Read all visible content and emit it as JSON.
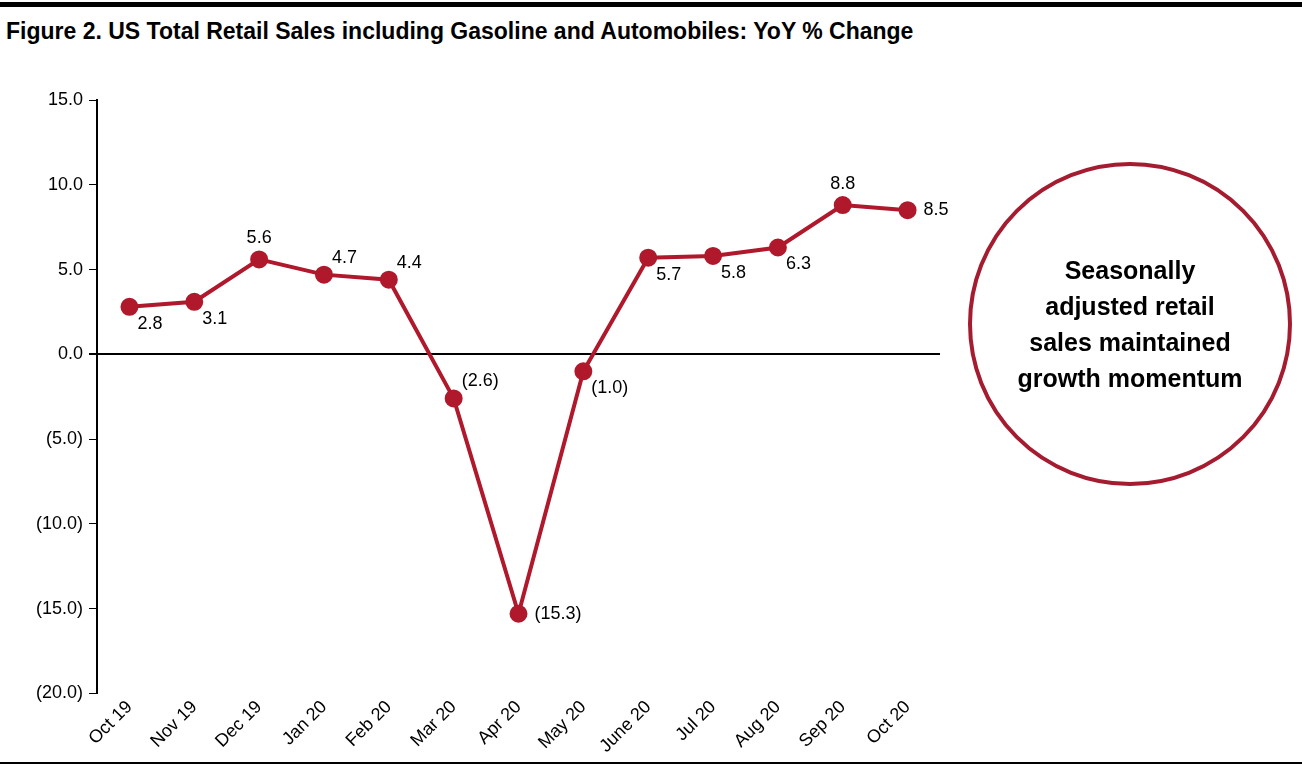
{
  "chart_data": {
    "type": "line",
    "title": "Figure 2. US Total Retail Sales including Gasoline and Automobiles: YoY % Change",
    "annotation": "Seasonally adjusted retail sales maintained growth momentum",
    "categories": [
      "Oct 19",
      "Nov 19",
      "Dec 19",
      "Jan 20",
      "Feb 20",
      "Mar 20",
      "Apr 20",
      "May 20",
      "June 20",
      "Jul 20",
      "Aug 20",
      "Sep 20",
      "Oct 20"
    ],
    "values": [
      2.8,
      3.1,
      5.6,
      4.7,
      4.4,
      -2.6,
      -15.3,
      -1.0,
      5.7,
      5.8,
      6.3,
      8.8,
      8.5
    ],
    "value_labels": [
      "2.8",
      "3.1",
      "5.6",
      "4.7",
      "4.4",
      "(2.6)",
      "(15.3)",
      "(1.0)",
      "5.7",
      "5.8",
      "6.3",
      "8.8",
      "8.5"
    ],
    "color": "#b0182b",
    "marker": "circle",
    "ylim": [
      -20,
      15
    ],
    "yticks": [
      {
        "value": -20,
        "label": "(20.0)"
      },
      {
        "value": -15,
        "label": "(15.0)"
      },
      {
        "value": -10,
        "label": "(10.0)"
      },
      {
        "value": -5,
        "label": "(5.0)"
      },
      {
        "value": 0,
        "label": "0.0"
      },
      {
        "value": 5,
        "label": "5.0"
      },
      {
        "value": 10,
        "label": "10.0"
      },
      {
        "value": 15,
        "label": "15.0"
      }
    ],
    "grid": false,
    "data_labels": true
  }
}
